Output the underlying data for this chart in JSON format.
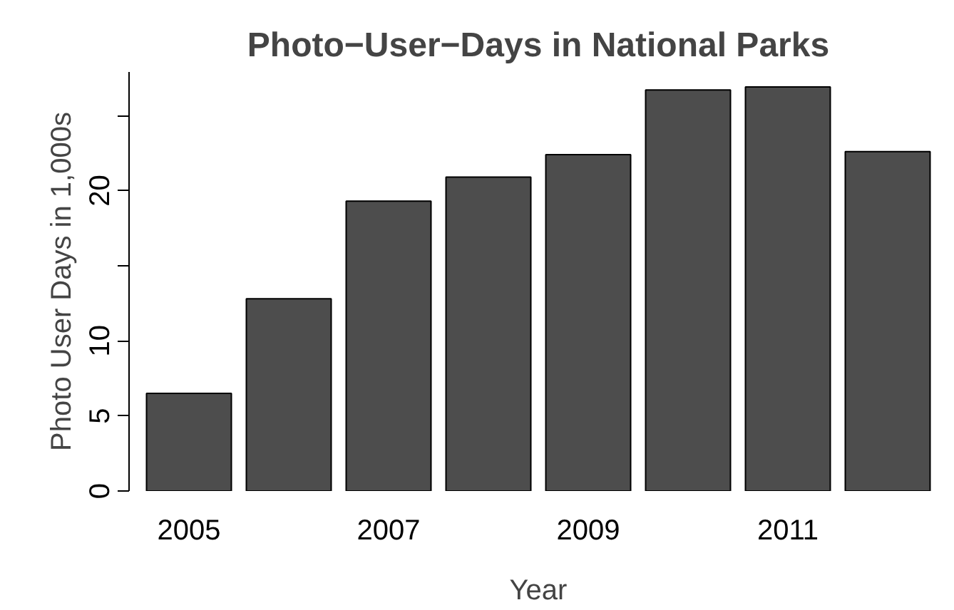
{
  "chart_data": {
    "type": "bar",
    "title": "Photo−User−Days in National Parks",
    "xlabel": "Year",
    "ylabel": "Photo User Days in 1,000s",
    "categories": [
      "2005",
      null,
      "2007",
      null,
      "2009",
      null,
      "2011",
      null
    ],
    "values": [
      6.5,
      12.8,
      19.3,
      20.9,
      22.4,
      26.7,
      26.9,
      22.6
    ],
    "color": "#4d4d4d",
    "ylim": [
      0,
      27.9
    ],
    "yticks": [
      0,
      5,
      10,
      {
        "value": 15,
        "label": null
      },
      20,
      {
        "value": 25,
        "label": null
      }
    ],
    "grid": false
  }
}
